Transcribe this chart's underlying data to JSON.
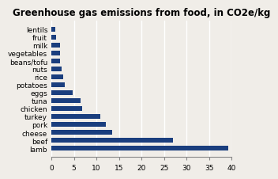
{
  "title": "Greenhouse gas emissions from food, in CO2e/kg",
  "categories": [
    "lentils",
    "fruit",
    "milk",
    "vegetables",
    "beans/tofu",
    "nuts",
    "rice",
    "potatoes",
    "eggs",
    "tuna",
    "chicken",
    "turkey",
    "pork",
    "cheese",
    "beef",
    "lamb"
  ],
  "values": [
    0.9,
    1.1,
    1.9,
    2.0,
    2.0,
    2.3,
    2.7,
    2.9,
    4.8,
    6.4,
    6.9,
    10.9,
    12.1,
    13.5,
    27.0,
    39.2
  ],
  "bar_color": "#1a3e7e",
  "xlim": [
    0,
    40
  ],
  "xticks": [
    0,
    5,
    10,
    15,
    20,
    25,
    30,
    35,
    40
  ],
  "title_fontsize": 8.5,
  "label_fontsize": 6.5,
  "tick_fontsize": 6.5,
  "background_color": "#f0ede8",
  "grid_color": "#ffffff",
  "bar_height": 0.6
}
